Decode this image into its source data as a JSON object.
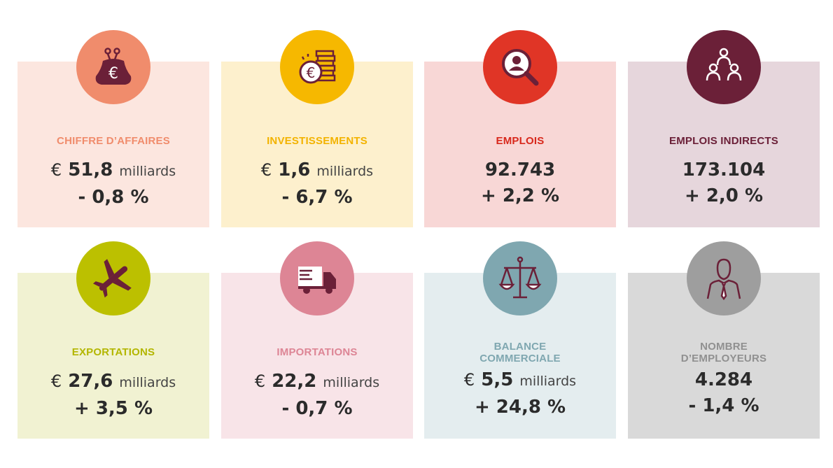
{
  "currency": "€",
  "unit": "milliards",
  "cards": [
    {
      "label": "CHIFFRE D’AFFAIRES",
      "value": "51,8",
      "change": "- 0,8 %",
      "icon": "purse-euro-icon",
      "bg": "#fce6df",
      "accent": "#f08c6c",
      "label_color": "#f08c6c"
    },
    {
      "label": "INVESTISSEMENTS",
      "value": "1,6",
      "change": "- 6,7 %",
      "icon": "coins-euro-icon",
      "bg": "#fdf0cd",
      "accent": "#f6b800",
      "label_color": "#f3b300"
    },
    {
      "label": "EMPLOIS",
      "value": "92.743",
      "change": "+ 2,2 %",
      "icon": "person-search-icon",
      "bg": "#f8d7d6",
      "accent": "#e03526",
      "label_color": "#d8281c"
    },
    {
      "label": "EMPLOIS INDIRECTS",
      "value": "173.104",
      "change": "+ 2,0 %",
      "icon": "people-network-icon",
      "bg": "#e6d6dc",
      "accent": "#6b2038",
      "label_color": "#6b2038"
    },
    {
      "label": "EXPORTATIONS",
      "value": "27,6",
      "change": "+ 3,5 %",
      "icon": "airplane-icon",
      "bg": "#f1f2d2",
      "accent": "#bcc000",
      "label_color": "#b3b600"
    },
    {
      "label": "IMPORTATIONS",
      "value": "22,2",
      "change": "- 0,7 %",
      "icon": "truck-icon",
      "bg": "#f8e4e8",
      "accent": "#dd8595",
      "label_color": "#dd8595"
    },
    {
      "label": "BALANCE COMMERCIALE",
      "value": "5,5",
      "change": "+ 24,8 %",
      "icon": "scales-icon",
      "bg": "#e4edef",
      "accent": "#7fa7b0",
      "label_color": "#7fa7b0"
    },
    {
      "label": "NOMBRE D’EMPLOYEURS",
      "value": "4.284",
      "change": "- 1,4 %",
      "icon": "businessman-icon",
      "bg": "#d9d9d9",
      "accent": "#9e9e9e",
      "label_color": "#909090"
    }
  ]
}
